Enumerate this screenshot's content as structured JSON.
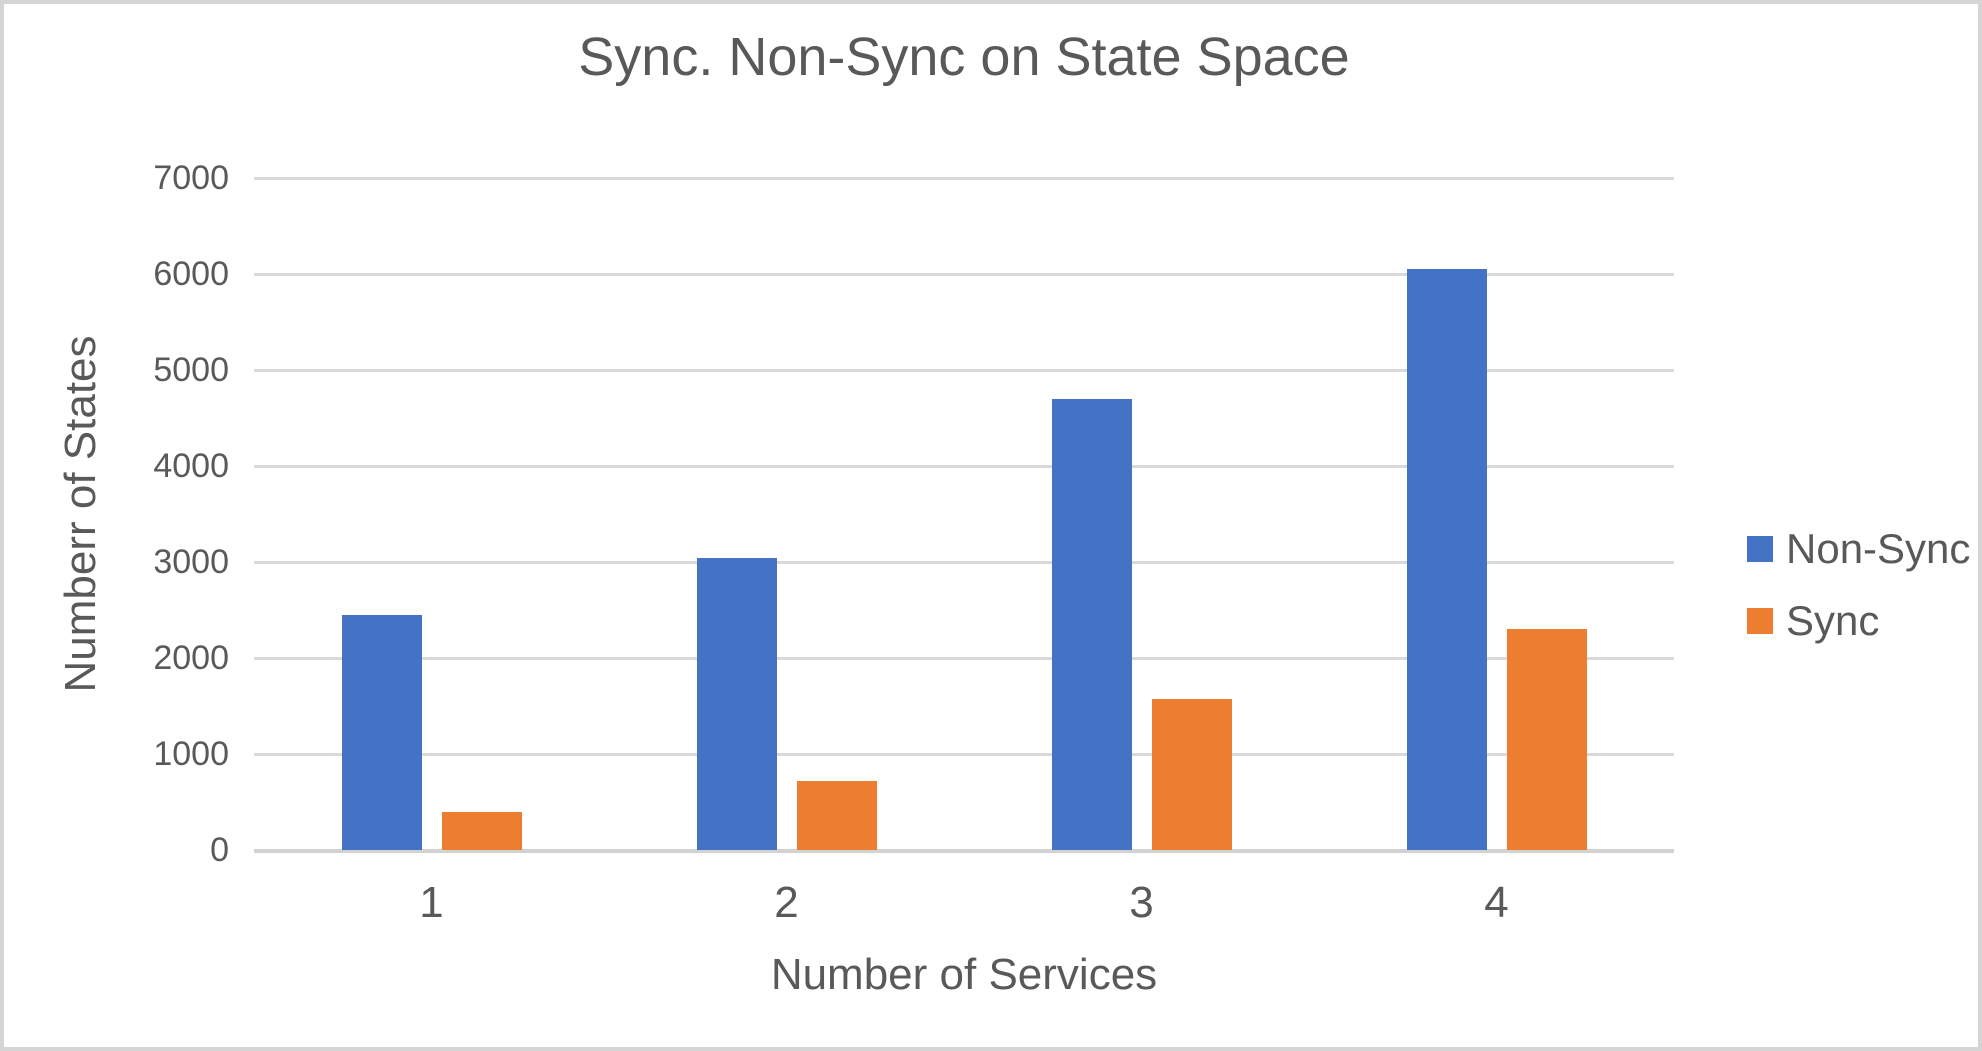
{
  "chart_data": {
    "type": "bar",
    "title": "Sync. Non-Sync on State Space",
    "xlabel": "Number of Services",
    "ylabel": "Numberr of States",
    "categories": [
      "1",
      "2",
      "3",
      "4"
    ],
    "series": [
      {
        "name": "Non-Sync",
        "color": "#4472C4",
        "values": [
          2450,
          3040,
          4700,
          6050
        ]
      },
      {
        "name": "Sync",
        "color": "#ED7D31",
        "values": [
          400,
          720,
          1570,
          2300
        ]
      }
    ],
    "ylim": [
      0,
      7000
    ],
    "ytick_step": 1000,
    "ytick_labels": [
      "0",
      "1000",
      "2000",
      "3000",
      "4000",
      "5000",
      "6000",
      "7000"
    ],
    "grid": true,
    "legend_position": "right",
    "legend_entries": [
      "Non-Sync",
      "Sync"
    ]
  },
  "colors": {
    "background": "#FFFFFF",
    "gridline": "#D9D9D9",
    "text": "#595959",
    "frame_border": "#D5D5D5",
    "non_sync": "#4472C4",
    "sync": "#ED7D31"
  }
}
